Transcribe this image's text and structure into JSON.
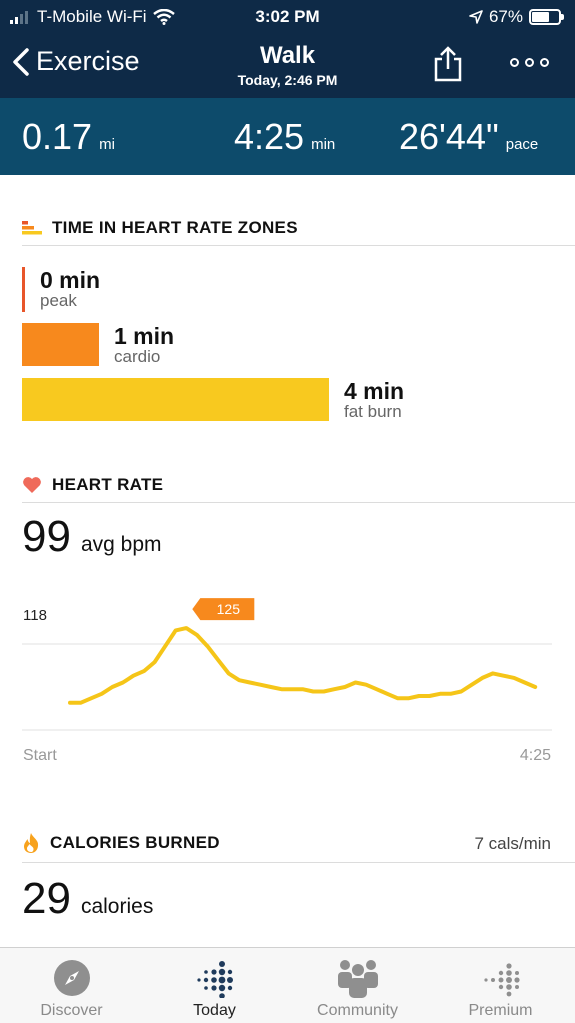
{
  "status_bar": {
    "carrier": "T-Mobile Wi-Fi",
    "time": "3:02 PM",
    "battery": "67%",
    "battery_level": 0.67,
    "icons": [
      "signal-icon",
      "wifi-icon",
      "location-icon",
      "battery-icon"
    ]
  },
  "nav": {
    "back_label": "Exercise",
    "title": "Walk",
    "subtitle": "Today, 2:46 PM",
    "icons": [
      "chevron-left-icon",
      "share-icon",
      "more-icon"
    ]
  },
  "summary": {
    "distance": {
      "value": "0.17",
      "unit": "mi"
    },
    "duration": {
      "value": "4:25",
      "unit": "min"
    },
    "pace": {
      "value": "26'44\"",
      "unit": "pace"
    }
  },
  "heart_zones": {
    "title": "TIME IN HEART RATE ZONES",
    "zones": [
      {
        "value": "0 min",
        "name": "peak",
        "minutes": 0,
        "color": "#e8562a"
      },
      {
        "value": "1 min",
        "name": "cardio",
        "minutes": 1,
        "color": "#f7891d"
      },
      {
        "value": "4 min",
        "name": "fat burn",
        "minutes": 4,
        "color": "#f8c91f"
      }
    ]
  },
  "heart_rate": {
    "title": "HEART RATE",
    "avg_value": "99",
    "avg_label": "avg bpm",
    "line_color": "#f5c518",
    "callout_color": "#f7891d"
  },
  "chart_data": {
    "type": "line",
    "x_start_label": "Start",
    "x_end_label": "4:25",
    "reference_value": 118,
    "reference_label": "118",
    "peak_label": "125",
    "peak_index": 11,
    "xlim": [
      0,
      265
    ],
    "ylim": [
      80,
      133
    ],
    "x": [
      0,
      6,
      12,
      18,
      24,
      30,
      36,
      42,
      48,
      54,
      60,
      66,
      72,
      78,
      84,
      90,
      96,
      102,
      108,
      114,
      120,
      126,
      132,
      138,
      144,
      150,
      156,
      162,
      168,
      174,
      180,
      186,
      192,
      198,
      204,
      210,
      216,
      222,
      228,
      234,
      240,
      246,
      252,
      258,
      264
    ],
    "y": [
      92,
      92,
      94,
      96,
      99,
      101,
      104,
      106,
      110,
      117,
      124,
      125,
      122,
      117,
      111,
      105,
      102,
      101,
      100,
      99,
      98,
      98,
      98,
      97,
      97,
      98,
      99,
      101,
      100,
      98,
      96,
      94,
      94,
      95,
      95,
      96,
      96,
      97,
      100,
      103,
      105,
      104,
      103,
      101,
      99
    ]
  },
  "calories": {
    "title": "CALORIES BURNED",
    "rate": "7 cals/min",
    "value": "29",
    "label": "calories"
  },
  "tabbar": {
    "tabs": [
      {
        "label": "Discover",
        "icon": "compass-icon",
        "active": false
      },
      {
        "label": "Today",
        "icon": "fitbit-dots-icon",
        "active": true
      },
      {
        "label": "Community",
        "icon": "community-icon",
        "active": false
      },
      {
        "label": "Premium",
        "icon": "premium-dots-icon",
        "active": false
      }
    ]
  }
}
